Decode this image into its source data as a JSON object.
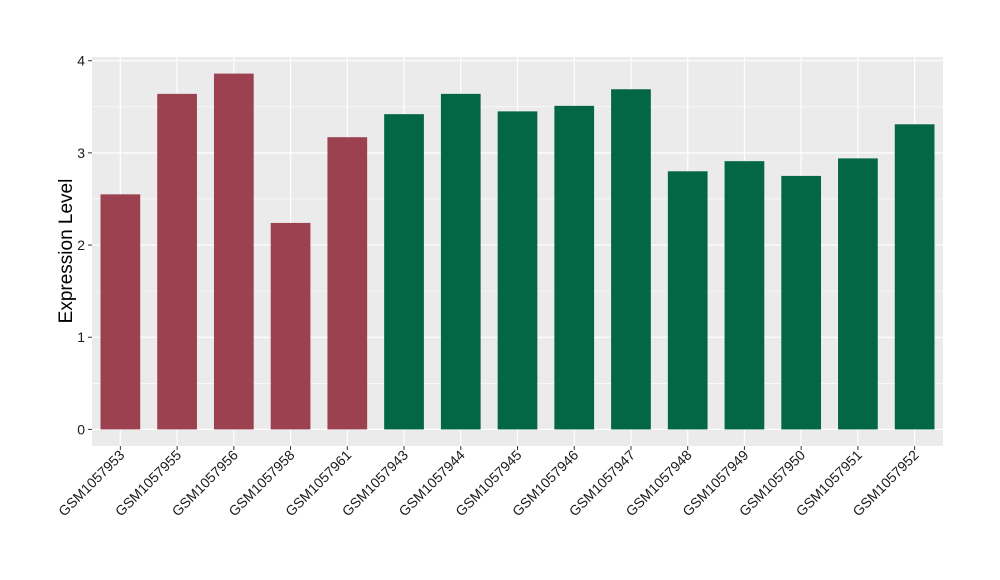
{
  "chart_data": {
    "type": "bar",
    "ylabel": "Expression Level",
    "xlabel": "",
    "ylim": [
      -0.18,
      4.04
    ],
    "yticks": [
      0,
      1,
      2,
      3,
      4
    ],
    "grid": true,
    "categories": [
      "GSM1057953",
      "GSM1057955",
      "GSM1057956",
      "GSM1057958",
      "GSM1057961",
      "GSM1057943",
      "GSM1057944",
      "GSM1057945",
      "GSM1057946",
      "GSM1057947",
      "GSM1057948",
      "GSM1057949",
      "GSM1057950",
      "GSM1057951",
      "GSM1057952"
    ],
    "values": [
      2.55,
      3.64,
      3.86,
      2.24,
      3.17,
      3.42,
      3.64,
      3.45,
      3.51,
      3.69,
      2.8,
      2.91,
      2.75,
      2.94,
      3.31
    ],
    "group_colors": [
      "#9b4150",
      "#9b4150",
      "#9b4150",
      "#9b4150",
      "#9b4150",
      "#036644",
      "#036644",
      "#036644",
      "#036644",
      "#036644",
      "#036644",
      "#036644",
      "#036644",
      "#036644",
      "#036644"
    ],
    "panel_background": "#ebebeb",
    "gridline_color": "#ffffff"
  }
}
